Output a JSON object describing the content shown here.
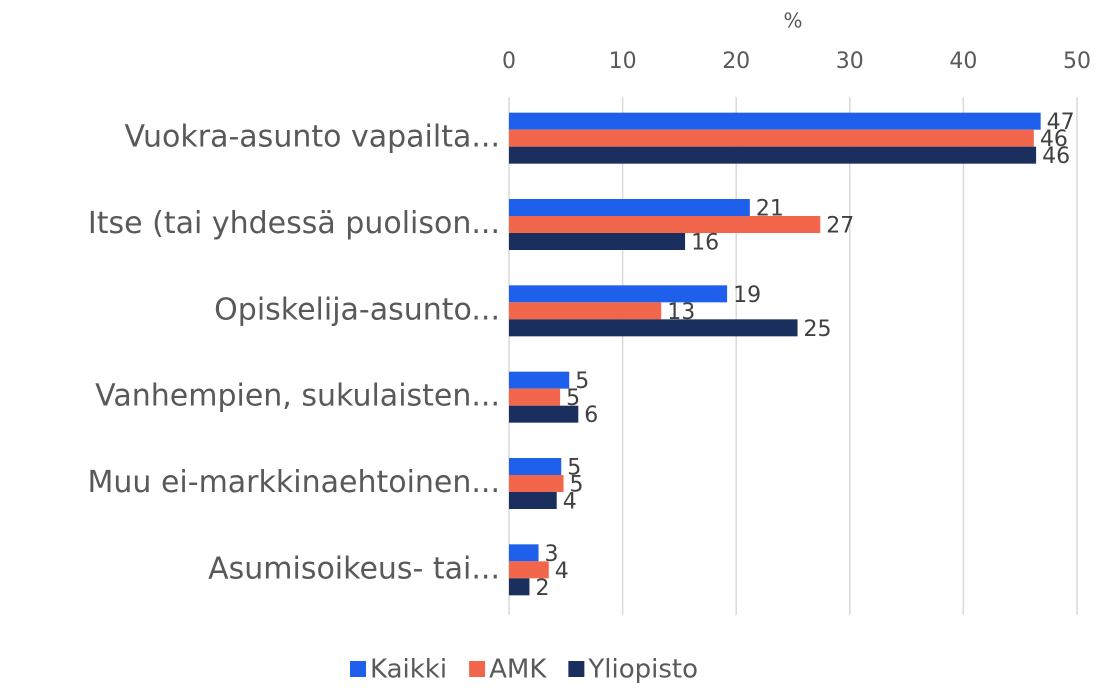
{
  "chart_data": {
    "type": "hbar",
    "x_label": "%",
    "categories": [
      "Vuokra-asunto vapailta...",
      "Itse (tai yhdessä puolison...",
      "Opiskelija-asunto...",
      "Vanhempien, sukulaisten...",
      "Muu ei-markkinaehtoinen...",
      "Asumisoikeus- tai..."
    ],
    "series": [
      {
        "name": "Kaikki",
        "color": "#1e5fec",
        "values": [
          46.8,
          21.2,
          19.2,
          5.3,
          4.6,
          2.6
        ],
        "value_labels": [
          "47",
          "21",
          "19",
          "5",
          "5",
          "3"
        ]
      },
      {
        "name": "AMK",
        "color": "#f2674b",
        "values": [
          46.2,
          27.4,
          13.4,
          4.5,
          4.8,
          3.5
        ],
        "value_labels": [
          "46",
          "27",
          "13",
          "5",
          "5",
          "4"
        ]
      },
      {
        "name": "Yliopisto",
        "color": "#1b2f5e",
        "values": [
          46.4,
          15.5,
          25.4,
          6.1,
          4.2,
          1.8
        ],
        "value_labels": [
          "46",
          "16",
          "25",
          "6",
          "4",
          "2"
        ]
      }
    ],
    "xlim": [
      0,
      50
    ],
    "xticks": [
      0,
      10,
      20,
      30,
      40,
      50
    ],
    "grid": true,
    "legend": "bottom"
  }
}
